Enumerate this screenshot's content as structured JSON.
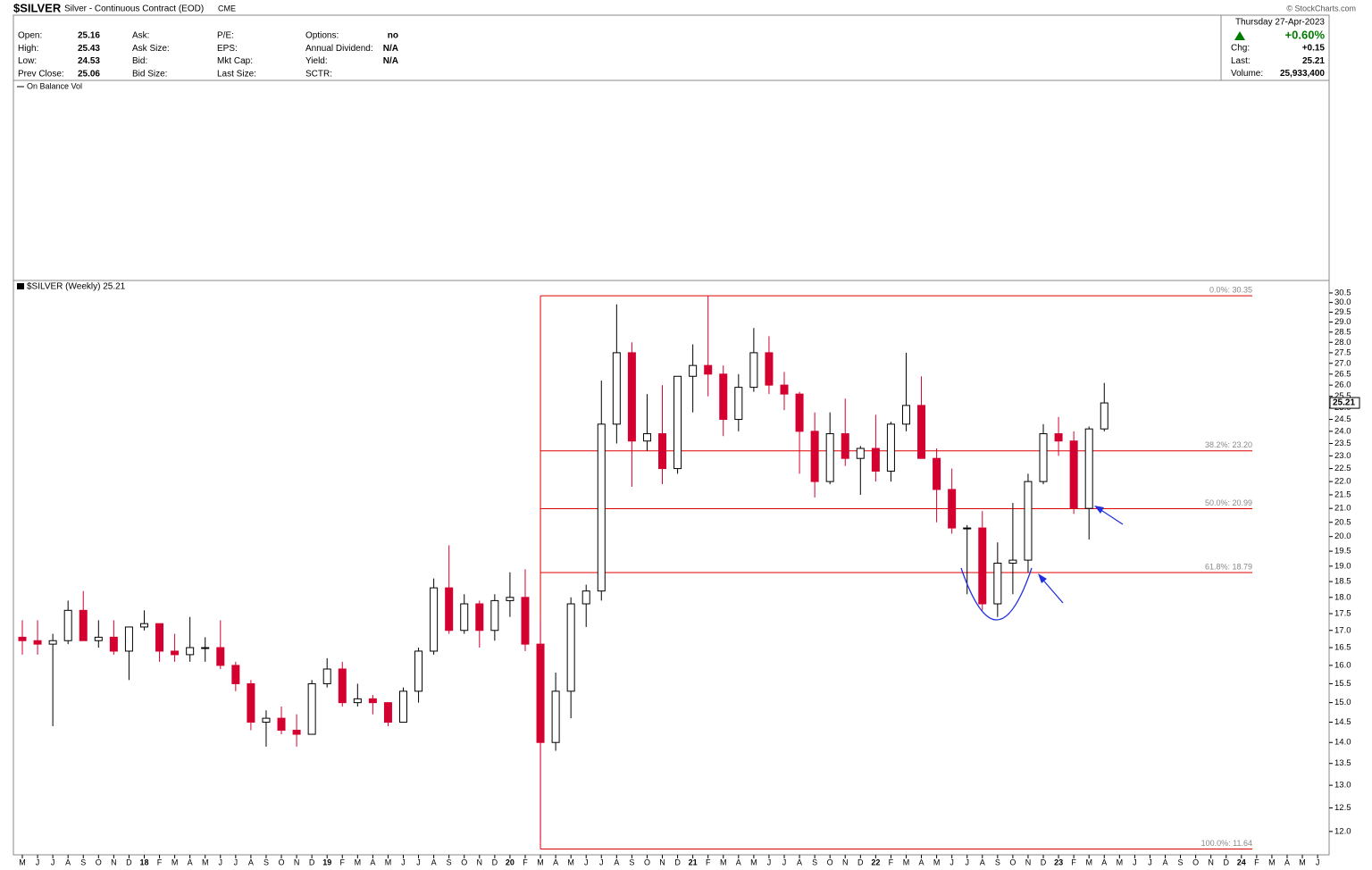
{
  "header": {
    "symbol": "$SILVER",
    "description": "Silver - Continuous Contract (EOD)",
    "exchange": "CME",
    "quote": [
      [
        {
          "label": "Open:",
          "value": 25.16
        },
        {
          "label": "High:",
          "value": 25.43
        },
        {
          "label": "Low:",
          "value": 24.53
        },
        {
          "label": "Prev Close:",
          "value": 25.06
        }
      ],
      [
        {
          "label": "Ask:"
        },
        {
          "label": "Ask Size:"
        },
        {
          "label": "Bid:"
        },
        {
          "label": "Bid Size:"
        }
      ],
      [
        {
          "label": "P/E:"
        },
        {
          "label": "EPS:"
        },
        {
          "label": "Mkt Cap:"
        },
        {
          "label": "Last Size:"
        }
      ],
      [
        {
          "label": "Options:",
          "value": "no"
        },
        {
          "label": "Annual Dividend:",
          "value": "N/A"
        },
        {
          "label": "Yield:",
          "value": "N/A"
        },
        {
          "label": "SCTR:"
        }
      ]
    ],
    "date": "Thursday  27-Apr-2023",
    "change_pct": "+0.60%",
    "summary": [
      {
        "label": "Chg:",
        "value": "+0.15"
      },
      {
        "label": "Last:",
        "value": 25.21
      },
      {
        "label": "Volume:",
        "value": "25,933,400"
      }
    ],
    "watermark": "© StockCharts.com",
    "indicator": "On Balance Vol"
  },
  "chart_data": {
    "type": "candlestick",
    "legend": "$SILVER (Weekly) 25.21",
    "last_price": 25.21,
    "up_color": "#000000",
    "down_color": "#d40030",
    "log_scale": true,
    "categories": [
      "M",
      "J",
      "J",
      "A",
      "S",
      "O",
      "N",
      "D",
      "18",
      "F",
      "M",
      "A",
      "M",
      "J",
      "J",
      "A",
      "S",
      "O",
      "N",
      "D",
      "19",
      "F",
      "M",
      "A",
      "M",
      "J",
      "J",
      "A",
      "S",
      "O",
      "N",
      "D",
      "20",
      "F",
      "M",
      "A",
      "M",
      "J",
      "J",
      "A",
      "S",
      "O",
      "N",
      "D",
      "21",
      "F",
      "M",
      "A",
      "M",
      "J",
      "J",
      "A",
      "S",
      "O",
      "N",
      "D",
      "22",
      "F",
      "M",
      "A",
      "M",
      "J",
      "J",
      "A",
      "S",
      "O",
      "N",
      "D",
      "23",
      "F",
      "M",
      "A",
      "M",
      "J",
      "J",
      "A",
      "S",
      "O",
      "N",
      "D",
      "24",
      "F",
      "M",
      "A",
      "M",
      "J"
    ],
    "open": [
      16.8,
      16.7,
      16.6,
      16.7,
      17.6,
      16.7,
      16.8,
      16.4,
      17.1,
      17.2,
      16.4,
      16.3,
      16.5,
      16.5,
      16.0,
      15.5,
      14.5,
      14.6,
      14.3,
      14.2,
      15.5,
      15.9,
      15.0,
      15.1,
      15.0,
      14.5,
      15.3,
      16.4,
      18.3,
      17.0,
      17.8,
      17.0,
      17.9,
      18.0,
      16.6,
      14.0,
      15.3,
      17.8,
      18.2,
      24.3,
      27.5,
      23.6,
      23.9,
      22.5,
      26.4,
      26.9,
      26.5,
      24.5,
      25.9,
      27.5,
      26.0,
      25.6,
      24.0,
      22.0,
      23.9,
      22.9,
      23.3,
      22.4,
      24.3,
      25.1,
      22.9,
      21.7,
      20.3,
      20.3,
      17.8,
      19.1,
      19.2,
      22.0,
      23.9,
      23.6,
      21.0,
      24.1,
      null,
      null,
      null,
      null,
      null,
      null,
      null,
      null,
      null,
      null,
      null,
      null,
      null,
      null
    ],
    "high": [
      17.3,
      17.3,
      16.9,
      17.9,
      18.2,
      17.3,
      17.3,
      17.1,
      17.6,
      17.2,
      16.9,
      17.4,
      16.8,
      17.3,
      16.1,
      15.6,
      14.8,
      14.9,
      14.7,
      15.6,
      16.2,
      16.1,
      15.5,
      15.2,
      15.0,
      15.4,
      16.5,
      18.6,
      19.7,
      18.1,
      17.9,
      18.1,
      18.8,
      18.9,
      17.3,
      15.8,
      18.0,
      18.4,
      26.2,
      29.9,
      28.0,
      25.6,
      26.0,
      26.4,
      27.9,
      30.35,
      26.9,
      26.5,
      28.7,
      28.3,
      26.6,
      25.7,
      24.8,
      24.8,
      25.4,
      23.4,
      24.7,
      24.4,
      27.5,
      26.4,
      23.3,
      22.5,
      20.4,
      20.9,
      19.8,
      21.2,
      22.3,
      24.3,
      24.6,
      24.0,
      24.2,
      26.1,
      null,
      null,
      null,
      null,
      null,
      null,
      null,
      null,
      null,
      null,
      null,
      null,
      null,
      null
    ],
    "low": [
      16.3,
      16.3,
      14.4,
      16.6,
      16.7,
      16.5,
      16.3,
      15.6,
      17.0,
      16.1,
      16.1,
      16.1,
      16.1,
      15.9,
      15.3,
      14.3,
      13.9,
      14.2,
      13.9,
      14.2,
      15.4,
      14.9,
      14.9,
      14.7,
      14.4,
      14.5,
      15.0,
      16.3,
      16.9,
      16.9,
      16.5,
      16.7,
      17.4,
      16.4,
      11.8,
      13.8,
      14.6,
      17.1,
      17.9,
      23.5,
      21.8,
      23.2,
      21.9,
      22.3,
      24.8,
      25.5,
      23.8,
      24.0,
      25.7,
      25.6,
      24.9,
      22.3,
      21.4,
      21.9,
      22.6,
      21.5,
      22.0,
      22.0,
      24.0,
      22.9,
      20.5,
      20.1,
      18.1,
      17.6,
      17.4,
      18.1,
      18.8,
      21.9,
      23.0,
      20.8,
      19.9,
      24.0,
      null,
      null,
      null,
      null,
      null,
      null,
      null,
      null,
      null,
      null,
      null,
      null,
      null,
      null
    ],
    "close": [
      16.7,
      16.6,
      16.7,
      17.6,
      16.7,
      16.8,
      16.4,
      17.1,
      17.2,
      16.4,
      16.3,
      16.5,
      16.5,
      16.0,
      15.5,
      14.5,
      14.6,
      14.3,
      14.2,
      15.5,
      15.9,
      15.0,
      15.1,
      15.0,
      14.5,
      15.3,
      16.4,
      18.3,
      17.0,
      17.8,
      17.0,
      17.9,
      18.0,
      16.6,
      14.0,
      15.3,
      17.8,
      18.2,
      24.3,
      27.5,
      23.6,
      23.9,
      22.5,
      26.4,
      26.9,
      26.5,
      24.5,
      25.9,
      27.5,
      26.0,
      25.6,
      24.0,
      22.0,
      23.9,
      22.9,
      23.3,
      22.4,
      24.3,
      25.1,
      22.9,
      21.7,
      20.3,
      20.3,
      17.8,
      19.1,
      19.2,
      22.0,
      23.9,
      23.6,
      21.0,
      24.1,
      25.21,
      null,
      null,
      null,
      null,
      null,
      null,
      null,
      null,
      null,
      null,
      null,
      null,
      null,
      null
    ],
    "ylim": [
      11.56,
      31.07
    ],
    "yticks": [
      {
        "value": 12,
        "label": "12.0"
      },
      12.5,
      {
        "value": 13,
        "label": "13.0"
      },
      13.5,
      {
        "value": 14,
        "label": "14.0"
      },
      14.5,
      {
        "value": 15,
        "label": "15.0"
      },
      15.5,
      {
        "value": 16,
        "label": "16.0"
      },
      16.5,
      {
        "value": 17,
        "label": "17.0"
      },
      17.5,
      {
        "value": 18,
        "label": "18.0"
      },
      18.5,
      {
        "value": 19,
        "label": "19.0"
      },
      19.5,
      {
        "value": 20,
        "label": "20.0"
      },
      20.5,
      {
        "value": 21,
        "label": "21.0"
      },
      21.5,
      {
        "value": 22,
        "label": "22.0"
      },
      22.5,
      {
        "value": 23,
        "label": "23.0"
      },
      23.5,
      {
        "value": 24,
        "label": "24.0"
      },
      24.5,
      {
        "value": 25,
        "label": "25.0"
      },
      25.5,
      {
        "value": 26,
        "label": "26.0"
      },
      26.5,
      {
        "value": 27,
        "label": "27.0"
      },
      27.5,
      {
        "value": 28,
        "label": "28.0"
      },
      28.5,
      {
        "value": 29,
        "label": "29.0"
      },
      29.5,
      {
        "value": 30,
        "label": "30.0"
      },
      30.5
    ],
    "fib_color": "#e00000",
    "fib_levels": [
      {
        "value": 30.35,
        "label": "0.0%: 30.35"
      },
      {
        "value": 23.2,
        "label": "38.2%: 23.20"
      },
      {
        "value": 20.99,
        "label": "50.0%: 20.99"
      },
      {
        "value": 18.79,
        "label": "61.8%: 18.79"
      },
      {
        "value": 11.64,
        "label": "100.0%: 11.64"
      }
    ]
  }
}
